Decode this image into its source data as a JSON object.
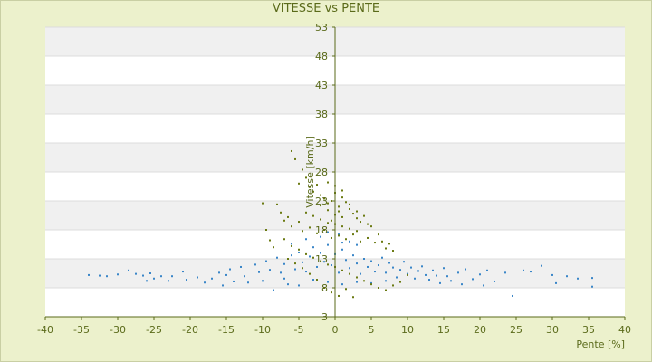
{
  "chart_data": {
    "type": "scatter",
    "title": "VITESSE vs PENTE",
    "xlabel": "Pente [%]",
    "ylabel": "Vitesse [km/h]",
    "xlim": [
      -40,
      40
    ],
    "ylim": [
      3,
      53
    ],
    "x_ticks": [
      -40,
      -35,
      -30,
      -25,
      -20,
      -15,
      -10,
      -5,
      0,
      5,
      10,
      15,
      20,
      25,
      30,
      35,
      40
    ],
    "y_ticks": [
      3,
      8,
      13,
      18,
      23,
      28,
      33,
      38,
      43,
      48,
      53
    ],
    "grid": true,
    "legend": "none",
    "colors": {
      "background": "#ecf1cc",
      "plot_band_light": "#ffffff",
      "plot_band_dark": "#f0f0f0",
      "axis": "#5a6a1a",
      "series_blue": "#3a86c8",
      "series_olive": "#6b7a12"
    },
    "series": [
      {
        "color": "#3a86c8",
        "points": [
          [
            -34,
            10.2
          ],
          [
            -32.5,
            10.1
          ],
          [
            -31.5,
            10.0
          ],
          [
            -30,
            10.3
          ],
          [
            -28.5,
            11.0
          ],
          [
            -27.5,
            10.4
          ],
          [
            -26.5,
            10.1
          ],
          [
            -26,
            9.2
          ],
          [
            -25.5,
            10.5
          ],
          [
            -25,
            9.6
          ],
          [
            -24,
            10.0
          ],
          [
            -23,
            9.2
          ],
          [
            -22.5,
            10.0
          ],
          [
            -21,
            10.8
          ],
          [
            -20.5,
            9.4
          ],
          [
            -19,
            9.8
          ],
          [
            -18,
            8.9
          ],
          [
            -17,
            9.6
          ],
          [
            -16,
            10.6
          ],
          [
            -15.5,
            8.4
          ],
          [
            -15,
            10.2
          ],
          [
            -14.5,
            11.2
          ],
          [
            -14,
            9.1
          ],
          [
            -13,
            11.6
          ],
          [
            -12.5,
            10.0
          ],
          [
            -12,
            8.9
          ],
          [
            -11,
            12.0
          ],
          [
            -10.5,
            10.7
          ],
          [
            -10,
            9.2
          ],
          [
            -9.5,
            12.6
          ],
          [
            -9,
            11.1
          ],
          [
            -8.5,
            7.6
          ],
          [
            -8,
            13.2
          ],
          [
            -7.5,
            10.6
          ],
          [
            -7,
            12.1
          ],
          [
            -6.5,
            8.6
          ],
          [
            -6,
            13.6
          ],
          [
            -5.5,
            11.2
          ],
          [
            -5,
            14.1
          ],
          [
            -4.5,
            12.4
          ],
          [
            -4,
            10.8
          ],
          [
            -3.5,
            13.4
          ],
          [
            -3,
            15.0
          ],
          [
            -2.5,
            11.6
          ],
          [
            -2,
            14.0
          ],
          [
            -1.5,
            12.5
          ],
          [
            -1,
            15.4
          ],
          [
            -0.5,
            11.9
          ],
          [
            0,
            13.8
          ],
          [
            0.5,
            10.6
          ],
          [
            1,
            14.6
          ],
          [
            1.5,
            12.8
          ],
          [
            2,
            11.4
          ],
          [
            2.5,
            13.6
          ],
          [
            3,
            12.2
          ],
          [
            3.5,
            10.4
          ],
          [
            4,
            13.0
          ],
          [
            4.5,
            11.6
          ],
          [
            5,
            12.6
          ],
          [
            5.5,
            10.8
          ],
          [
            6,
            11.9
          ],
          [
            6.5,
            13.2
          ],
          [
            7,
            10.6
          ],
          [
            7.5,
            12.3
          ],
          [
            8,
            11.5
          ],
          [
            8.5,
            9.8
          ],
          [
            9,
            11.1
          ],
          [
            9.5,
            12.5
          ],
          [
            10,
            10.4
          ],
          [
            10.5,
            11.5
          ],
          [
            11,
            9.6
          ],
          [
            11.5,
            10.9
          ],
          [
            12,
            11.7
          ],
          [
            12.5,
            10.2
          ],
          [
            13,
            9.4
          ],
          [
            13.5,
            11.0
          ],
          [
            14,
            10.1
          ],
          [
            14.5,
            8.8
          ],
          [
            15,
            11.4
          ],
          [
            15.5,
            10.0
          ],
          [
            16,
            9.2
          ],
          [
            17,
            10.6
          ],
          [
            17.5,
            8.6
          ],
          [
            18,
            11.2
          ],
          [
            19,
            9.5
          ],
          [
            20,
            10.3
          ],
          [
            20.5,
            8.4
          ],
          [
            21,
            11.0
          ],
          [
            22,
            9.1
          ],
          [
            23.5,
            10.6
          ],
          [
            24.5,
            6.6
          ],
          [
            26,
            11.0
          ],
          [
            27,
            10.8
          ],
          [
            28.5,
            11.8
          ],
          [
            30,
            10.2
          ],
          [
            30.5,
            8.8
          ],
          [
            32,
            10.0
          ],
          [
            33.5,
            9.6
          ],
          [
            35.5,
            9.7
          ],
          [
            35.5,
            8.2
          ],
          [
            -6,
            15.6
          ],
          [
            -4,
            16.4
          ],
          [
            -2,
            16.8
          ],
          [
            0.5,
            17.2
          ],
          [
            2,
            16.0
          ],
          [
            3,
            15.4
          ],
          [
            -1,
            17.6
          ],
          [
            1,
            15.8
          ],
          [
            -3,
            9.4
          ],
          [
            -1,
            9.0
          ],
          [
            1,
            8.6
          ],
          [
            3,
            9.0
          ],
          [
            -5,
            8.4
          ],
          [
            5,
            8.8
          ],
          [
            -7,
            9.6
          ],
          [
            7,
            9.2
          ]
        ]
      },
      {
        "color": "#6b7a12",
        "points": [
          [
            -6,
            31.6
          ],
          [
            -5.5,
            30.2
          ],
          [
            -4.5,
            28.4
          ],
          [
            -4,
            27.0
          ],
          [
            -5,
            26.0
          ],
          [
            -3.5,
            25.4
          ],
          [
            -3,
            24.6
          ],
          [
            -2.5,
            25.8
          ],
          [
            -2,
            24.0
          ],
          [
            -1.5,
            23.4
          ],
          [
            -1,
            22.6
          ],
          [
            -0.5,
            23.0
          ],
          [
            0,
            24.4
          ],
          [
            0.5,
            22.0
          ],
          [
            1,
            23.6
          ],
          [
            1.5,
            22.8
          ],
          [
            2,
            21.6
          ],
          [
            2.5,
            20.8
          ],
          [
            3,
            20.0
          ],
          [
            3.5,
            19.4
          ],
          [
            4,
            20.4
          ],
          [
            4.5,
            19.0
          ],
          [
            5,
            18.6
          ],
          [
            -4,
            21.0
          ],
          [
            -3,
            20.4
          ],
          [
            -2,
            19.8
          ],
          [
            -1,
            19.2
          ],
          [
            0,
            19.0
          ],
          [
            1,
            18.6
          ],
          [
            2,
            18.2
          ],
          [
            3,
            17.8
          ],
          [
            -8,
            22.4
          ],
          [
            -7.5,
            21.0
          ],
          [
            -7,
            19.6
          ],
          [
            -6.5,
            20.2
          ],
          [
            -6,
            18.6
          ],
          [
            -5,
            19.4
          ],
          [
            -4.5,
            17.8
          ],
          [
            -3.5,
            18.4
          ],
          [
            -2.5,
            17.4
          ],
          [
            -1.5,
            18.0
          ],
          [
            -0.5,
            16.6
          ],
          [
            0.5,
            17.0
          ],
          [
            1.5,
            16.4
          ],
          [
            2.5,
            17.2
          ],
          [
            3.5,
            16.0
          ],
          [
            4.5,
            16.6
          ],
          [
            5.5,
            15.8
          ],
          [
            6,
            17.2
          ],
          [
            6.5,
            16.0
          ],
          [
            7,
            14.8
          ],
          [
            7.5,
            15.6
          ],
          [
            8,
            14.4
          ],
          [
            -9.5,
            18.0
          ],
          [
            -10,
            22.6
          ],
          [
            -9,
            16.2
          ],
          [
            -8.5,
            15.0
          ],
          [
            -7,
            16.4
          ],
          [
            -6,
            15.2
          ],
          [
            -5,
            14.6
          ],
          [
            -4,
            13.8
          ],
          [
            -3,
            13.2
          ],
          [
            -2,
            12.6
          ],
          [
            -1,
            12.0
          ],
          [
            0,
            11.6
          ],
          [
            1,
            11.0
          ],
          [
            2,
            10.4
          ],
          [
            3,
            9.8
          ],
          [
            4,
            9.2
          ],
          [
            5,
            8.6
          ],
          [
            6,
            8.0
          ],
          [
            7,
            7.6
          ],
          [
            8,
            8.4
          ],
          [
            9,
            9.0
          ],
          [
            10,
            10.2
          ],
          [
            -1.5,
            8.0
          ],
          [
            -0.5,
            7.2
          ],
          [
            0.5,
            6.6
          ],
          [
            1.5,
            7.8
          ],
          [
            2.5,
            6.4
          ],
          [
            -2.5,
            9.4
          ],
          [
            -3.5,
            10.4
          ],
          [
            -4.5,
            11.4
          ],
          [
            -5.5,
            12.2
          ],
          [
            -6.5,
            13.0
          ],
          [
            0,
            20.6
          ],
          [
            -1,
            21.4
          ],
          [
            1,
            20.2
          ],
          [
            -2,
            22.2
          ],
          [
            2,
            22.4
          ],
          [
            0,
            25.6
          ],
          [
            -1,
            26.2
          ],
          [
            1,
            24.8
          ],
          [
            -0.5,
            19.6
          ],
          [
            0.5,
            21.2
          ],
          [
            3,
            21.2
          ]
        ]
      }
    ]
  }
}
